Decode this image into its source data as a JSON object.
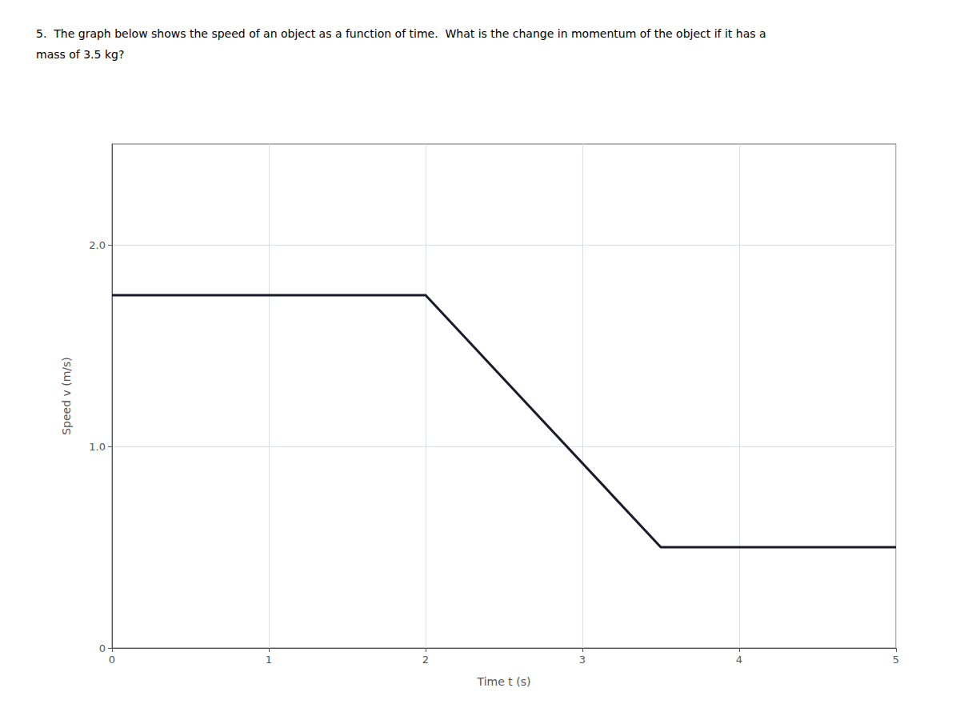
{
  "chart_data": {
    "type": "line",
    "title": "5.  The graph below shows the speed of an object as a function of time.  What is the change in momentum of the object if it has a",
    "subtitle": "mass of 3.5 kg?",
    "x_label": "Time t (s)",
    "y_label": "Speed v (m/s)",
    "x": [
      0,
      2.0,
      3.5,
      5.0
    ],
    "values": [
      1.75,
      1.75,
      0.5,
      0.5
    ],
    "color": "#1a1a2a",
    "xlim": [
      0,
      5
    ],
    "ylim": [
      0,
      2.5
    ],
    "xticks": [
      0,
      1,
      2,
      3,
      4,
      5
    ],
    "yticks": [
      0,
      {
        "value": 1.0,
        "label": "1.0"
      },
      {
        "value": 2.0,
        "label": "2.0"
      }
    ],
    "grid": true
  }
}
